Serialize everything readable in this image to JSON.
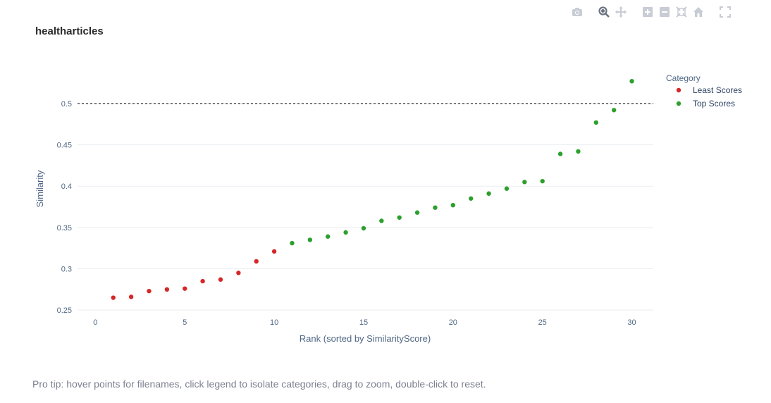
{
  "modebar": {
    "icons": [
      "camera-icon",
      "zoom-icon",
      "pan-icon",
      "zoom-in-icon",
      "zoom-out-icon",
      "autoscale-icon",
      "reset-axes-icon",
      "fullscreen-icon"
    ]
  },
  "pro_tip": "Pro tip: hover points for filenames, click legend to isolate categories, drag to zoom, double-click to reset.",
  "colors": {
    "least": "#d62728",
    "top": "#2ca02c",
    "grid": "#e9edf2",
    "threshold": "#555555"
  },
  "chart_data": {
    "type": "scatter",
    "title": "healtharticles",
    "xlabel": "Rank (sorted by SimilarityScore)",
    "ylabel": "Similarity",
    "xlim": [
      -1,
      31.2
    ],
    "ylim": [
      0.245,
      0.54
    ],
    "xticks": [
      0,
      5,
      10,
      15,
      20,
      25,
      30
    ],
    "xtick_labels": [
      "0",
      "5",
      "10",
      "15",
      "20",
      "25",
      "30"
    ],
    "yticks": [
      0.25,
      0.3,
      0.35,
      0.4,
      0.45,
      0.5
    ],
    "ytick_labels": [
      "0.25",
      "0.3",
      "0.35",
      "0.4",
      "0.45",
      "0.5"
    ],
    "grid": true,
    "threshold": 0.5,
    "legend": {
      "title": "Category",
      "placement": "top-right"
    },
    "series": [
      {
        "name": "Least Scores",
        "color": "#d62728",
        "x": [
          1,
          2,
          3,
          4,
          5,
          6,
          7,
          8,
          9,
          10
        ],
        "y": [
          0.265,
          0.266,
          0.273,
          0.275,
          0.276,
          0.285,
          0.287,
          0.295,
          0.309,
          0.321
        ]
      },
      {
        "name": "Top Scores",
        "color": "#2ca02c",
        "x": [
          11,
          12,
          13,
          14,
          15,
          16,
          17,
          18,
          19,
          20,
          21,
          22,
          23,
          24,
          25,
          26,
          27,
          28,
          29,
          30
        ],
        "y": [
          0.331,
          0.335,
          0.339,
          0.344,
          0.349,
          0.358,
          0.362,
          0.368,
          0.374,
          0.377,
          0.385,
          0.391,
          0.397,
          0.405,
          0.406,
          0.439,
          0.442,
          0.477,
          0.492,
          0.527
        ]
      }
    ]
  }
}
